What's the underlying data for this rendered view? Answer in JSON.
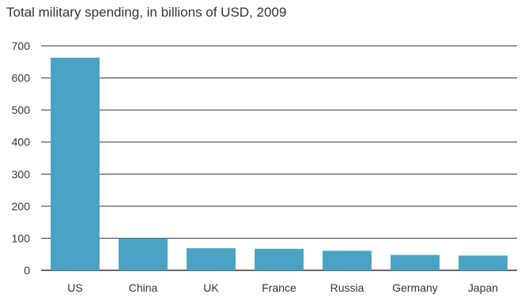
{
  "chart_data": {
    "type": "bar",
    "title": "Total military spending, in billions of USD, 2009",
    "xlabel": "",
    "ylabel": "",
    "categories": [
      "US",
      "China",
      "UK",
      "France",
      "Russia",
      "Germany",
      "Japan"
    ],
    "values": [
      663,
      100,
      69,
      67,
      61,
      48,
      46
    ],
    "ylim": [
      0,
      700
    ],
    "yticks": [
      0,
      100,
      200,
      300,
      400,
      500,
      600,
      700
    ],
    "grid": true,
    "legend": "none",
    "bar_color": "#4ba3c3",
    "grid_color": "#333333"
  }
}
